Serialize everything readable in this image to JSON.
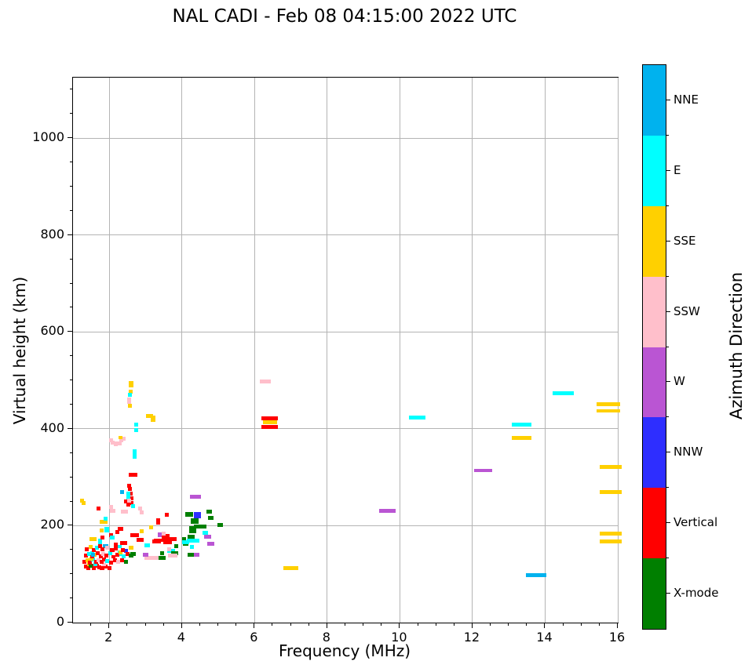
{
  "title": "NAL CADI - Feb 08 04:15:00 2022 UTC",
  "x_axis": {
    "label": "Frequency (MHz)",
    "min": 1,
    "max": 16,
    "major_ticks": [
      2,
      4,
      6,
      8,
      10,
      12,
      14,
      16
    ],
    "minor_step": 0.5
  },
  "y_axis": {
    "label": "Virtual height (km)",
    "min": 0,
    "max": 1125,
    "major_ticks": [
      0,
      200,
      400,
      600,
      800,
      1000
    ],
    "minor_step": 50
  },
  "colorbar": {
    "label": "Azimuth Direction",
    "categories": [
      {
        "name": "NNE",
        "color": "#00B2EE"
      },
      {
        "name": "E",
        "color": "#00FFFF"
      },
      {
        "name": "SSE",
        "color": "#FFD000"
      },
      {
        "name": "SSW",
        "color": "#FFBFCB"
      },
      {
        "name": "W",
        "color": "#BA55D3"
      },
      {
        "name": "NNW",
        "color": "#2E2EFF"
      },
      {
        "name": "Vertical",
        "color": "#FF0000"
      },
      {
        "name": "X-mode",
        "color": "#007F00"
      }
    ]
  },
  "chart_data": {
    "type": "scatter",
    "title": "NAL CADI - Feb 08 04:15:00 2022 UTC",
    "xlabel": "Frequency (MHz)",
    "ylabel": "Virtual height (km)",
    "xlim": [
      1,
      16
    ],
    "ylim": [
      0,
      1125
    ],
    "grid": "major only",
    "grid_color": "#b4b4b4",
    "legend": {
      "title": "Azimuth Direction",
      "position": "right discrete colorbar",
      "categories_top_to_bottom": [
        "NNE",
        "E",
        "SSE",
        "SSW",
        "W",
        "NNW",
        "Vertical",
        "X-mode"
      ]
    },
    "point_format": "[freq_MHz, virtual_height_km, category_index, optional_marker_width_MHz, optional_marker_height_km]",
    "points": [
      [
        6.3,
        498,
        3,
        0.3
      ],
      [
        6.42,
        421,
        6,
        0.45
      ],
      [
        6.42,
        413,
        2,
        0.4
      ],
      [
        6.42,
        404,
        6,
        0.45
      ],
      [
        7.0,
        113,
        2,
        0.4
      ],
      [
        9.65,
        230,
        4,
        0.45
      ],
      [
        10.48,
        423,
        1,
        0.45
      ],
      [
        12.3,
        314,
        4,
        0.5
      ],
      [
        13.35,
        408,
        1,
        0.55
      ],
      [
        13.35,
        381,
        2,
        0.55
      ],
      [
        13.75,
        98,
        0,
        0.55
      ],
      [
        14.5,
        474,
        1,
        0.6
      ],
      [
        15.75,
        451,
        2,
        0.65
      ],
      [
        15.75,
        437,
        2,
        0.65
      ],
      [
        15.8,
        321,
        2,
        0.6
      ],
      [
        15.8,
        269,
        2,
        0.6
      ],
      [
        15.8,
        184,
        2,
        0.6
      ],
      [
        15.8,
        168,
        2,
        0.6
      ],
      [
        2.6,
        492,
        2,
        0.11,
        14
      ],
      [
        2.58,
        477,
        2
      ],
      [
        2.56,
        470,
        1
      ],
      [
        2.55,
        458,
        3,
        0.11,
        12
      ],
      [
        2.56,
        448,
        2
      ],
      [
        3.1,
        427,
        2,
        0.2
      ],
      [
        3.2,
        421,
        2,
        0.13,
        12
      ],
      [
        2.74,
        408,
        1
      ],
      [
        2.74,
        398,
        1
      ],
      [
        2.05,
        376,
        3
      ],
      [
        2.1,
        372,
        3
      ],
      [
        2.17,
        368,
        3
      ],
      [
        2.25,
        370,
        3,
        0.2
      ],
      [
        2.33,
        377,
        3
      ],
      [
        2.4,
        380,
        3
      ],
      [
        2.3,
        382,
        2
      ],
      [
        2.7,
        352,
        1,
        0.11,
        10
      ],
      [
        2.7,
        342,
        1
      ],
      [
        2.65,
        305,
        6,
        0.25
      ],
      [
        2.54,
        282,
        6
      ],
      [
        2.36,
        270,
        0
      ],
      [
        2.56,
        276,
        6
      ],
      [
        2.58,
        266,
        6
      ],
      [
        2.6,
        257,
        6
      ],
      [
        2.53,
        262,
        1,
        0.11,
        16
      ],
      [
        2.45,
        250,
        6
      ],
      [
        2.52,
        244,
        6
      ],
      [
        2.62,
        247,
        6
      ],
      [
        2.55,
        252,
        3
      ],
      [
        2.66,
        240,
        1
      ],
      [
        1.25,
        252,
        2
      ],
      [
        1.3,
        247,
        2
      ],
      [
        1.7,
        235,
        6
      ],
      [
        2.42,
        229,
        3,
        0.2
      ],
      [
        1.85,
        208,
        2,
        0.22
      ],
      [
        1.9,
        215,
        1
      ],
      [
        1.93,
        192,
        1,
        0.11,
        12
      ],
      [
        1.78,
        190,
        2
      ],
      [
        1.55,
        172,
        2,
        0.2
      ],
      [
        1.75,
        168,
        1,
        0.11,
        12
      ],
      [
        1.9,
        158,
        0,
        0.15
      ],
      [
        1.52,
        144,
        1
      ],
      [
        2.05,
        238,
        3
      ],
      [
        2.1,
        231,
        3,
        0.15
      ],
      [
        2.85,
        236,
        3
      ],
      [
        2.9,
        228,
        3
      ],
      [
        2.3,
        193,
        6,
        0.15
      ],
      [
        2.18,
        161,
        6
      ],
      [
        2.28,
        143,
        1,
        0.11,
        12
      ],
      [
        2.4,
        164,
        6,
        0.2
      ],
      [
        2.22,
        187,
        6
      ],
      [
        2.05,
        180,
        6
      ],
      [
        2.08,
        176,
        1
      ],
      [
        1.82,
        176,
        6
      ],
      [
        2.7,
        180,
        6,
        0.25
      ],
      [
        2.85,
        171,
        6,
        0.2
      ],
      [
        3.05,
        160,
        1,
        0.15
      ],
      [
        3.3,
        167,
        6,
        0.25
      ],
      [
        2.6,
        154,
        2
      ],
      [
        3.2,
        134,
        3,
        0.45
      ],
      [
        3.7,
        148,
        1,
        0.2
      ],
      [
        3.0,
        140,
        4,
        0.15
      ],
      [
        2.65,
        142,
        7,
        0.15
      ],
      [
        2.45,
        148,
        5
      ],
      [
        2.9,
        189,
        2
      ],
      [
        3.15,
        196,
        2
      ],
      [
        3.45,
        144,
        7
      ],
      [
        3.8,
        143,
        7,
        0.2
      ],
      [
        3.85,
        158,
        7
      ],
      [
        4.1,
        163,
        7,
        0.15
      ],
      [
        4.25,
        178,
        7,
        0.2
      ],
      [
        4.3,
        192,
        7,
        0.2,
        14
      ],
      [
        4.5,
        198,
        7,
        0.35
      ],
      [
        4.35,
        210,
        7,
        0.2,
        12
      ],
      [
        4.8,
        216,
        7,
        0.15
      ],
      [
        4.2,
        224,
        7,
        0.2,
        10
      ],
      [
        5.05,
        202,
        7,
        0.15
      ],
      [
        4.75,
        229,
        7,
        0.15
      ],
      [
        4.25,
        140,
        7,
        0.2
      ],
      [
        3.45,
        134,
        7,
        0.2
      ],
      [
        4.05,
        172,
        7
      ],
      [
        4.3,
        169,
        1,
        0.35
      ],
      [
        4.65,
        185,
        1,
        0.15
      ],
      [
        4.28,
        156,
        1
      ],
      [
        4.1,
        166,
        1,
        0.2
      ],
      [
        4.7,
        177,
        4,
        0.2
      ],
      [
        4.8,
        163,
        4,
        0.2
      ],
      [
        4.4,
        140,
        4,
        0.15
      ],
      [
        3.4,
        181,
        4,
        0.11,
        10
      ],
      [
        4.38,
        260,
        4,
        0.3
      ],
      [
        4.42,
        222,
        5,
        0.2,
        14
      ],
      [
        3.38,
        170,
        6,
        0.3
      ],
      [
        3.6,
        166,
        6,
        0.25
      ],
      [
        3.5,
        174,
        6
      ],
      [
        3.58,
        222,
        6
      ],
      [
        3.35,
        209,
        6,
        0.11,
        12
      ],
      [
        3.55,
        178,
        6,
        0.2,
        10
      ],
      [
        3.7,
        173,
        6,
        0.3
      ],
      [
        3.5,
        184,
        3
      ],
      [
        3.65,
        151,
        3
      ],
      [
        3.75,
        139,
        3,
        0.25
      ],
      [
        1.35,
        115,
        6
      ],
      [
        1.42,
        112,
        6
      ],
      [
        1.5,
        117,
        6
      ],
      [
        1.58,
        113,
        6
      ],
      [
        1.65,
        118,
        6
      ],
      [
        1.72,
        114,
        6
      ],
      [
        1.8,
        112,
        6
      ],
      [
        1.9,
        116,
        6
      ],
      [
        2.0,
        113,
        6
      ],
      [
        1.45,
        120,
        2
      ],
      [
        1.62,
        121,
        1
      ],
      [
        1.85,
        120,
        3
      ],
      [
        1.48,
        118,
        7
      ],
      [
        1.32,
        126,
        6
      ],
      [
        1.4,
        128,
        2
      ],
      [
        1.47,
        124,
        6
      ],
      [
        1.55,
        130,
        1
      ],
      [
        1.63,
        126,
        6
      ],
      [
        1.7,
        129,
        3
      ],
      [
        1.78,
        125,
        6
      ],
      [
        1.86,
        131,
        6
      ],
      [
        1.95,
        127,
        1
      ],
      [
        2.05,
        124,
        6
      ],
      [
        2.15,
        128,
        6
      ],
      [
        2.25,
        125,
        3
      ],
      [
        2.35,
        129,
        6
      ],
      [
        1.5,
        132,
        2
      ],
      [
        2.45,
        126,
        7
      ],
      [
        1.35,
        138,
        6
      ],
      [
        1.44,
        142,
        1
      ],
      [
        1.52,
        136,
        6
      ],
      [
        1.6,
        140,
        2
      ],
      [
        1.68,
        144,
        6
      ],
      [
        1.76,
        137,
        6
      ],
      [
        1.84,
        141,
        3
      ],
      [
        1.92,
        138,
        6
      ],
      [
        2.02,
        143,
        1
      ],
      [
        2.12,
        136,
        6
      ],
      [
        2.22,
        140,
        6
      ],
      [
        2.3,
        145,
        2
      ],
      [
        2.4,
        137,
        1
      ],
      [
        2.5,
        142,
        6
      ],
      [
        2.6,
        138,
        7
      ],
      [
        1.55,
        140,
        0
      ],
      [
        1.38,
        152,
        6
      ],
      [
        1.48,
        156,
        2
      ],
      [
        1.58,
        150,
        6
      ],
      [
        1.66,
        154,
        1
      ],
      [
        1.74,
        158,
        6
      ],
      [
        1.82,
        151,
        6
      ],
      [
        1.95,
        155,
        3
      ],
      [
        2.08,
        149,
        6
      ],
      [
        2.18,
        153,
        6
      ],
      [
        2.28,
        157,
        1
      ],
      [
        2.38,
        150,
        6
      ]
    ]
  }
}
